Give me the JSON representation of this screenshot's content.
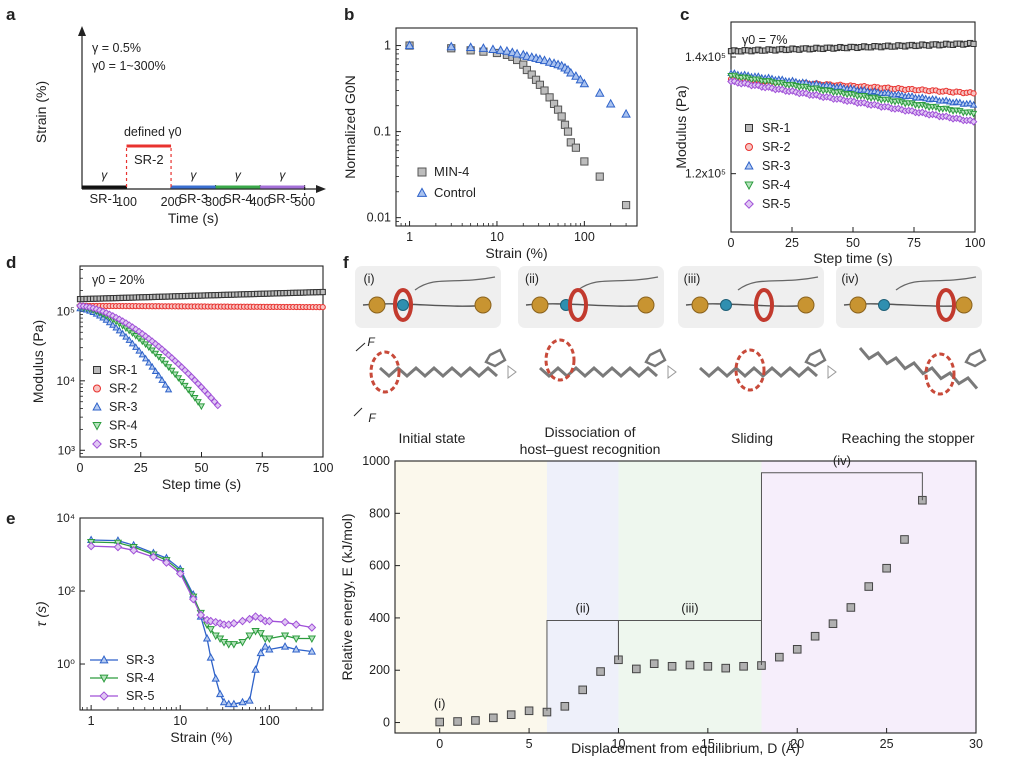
{
  "panel_labels": {
    "a": "a",
    "b": "b",
    "c": "c",
    "d": "d",
    "e": "e",
    "f": "f"
  },
  "chart_data": [
    {
      "id": "a",
      "type": "line",
      "xlabel": "Time (s)",
      "ylabel": "Strain (%)",
      "xticks": [
        "100",
        "200",
        "300",
        "400",
        "500"
      ],
      "annotations": {
        "gamma": "γ = 0.5%",
        "gamma0": "γ0 = 1~300%",
        "defined": "defined γ0",
        "g": "γ"
      },
      "segments": [
        {
          "name": "SR-1",
          "x": [
            0,
            100
          ],
          "level": "low",
          "color": "#111111"
        },
        {
          "name": "SR-2",
          "x": [
            100,
            200
          ],
          "level": "high",
          "color": "#e8322f"
        },
        {
          "name": "SR-3",
          "x": [
            200,
            300
          ],
          "level": "low",
          "color": "#3a6fd0"
        },
        {
          "name": "SR-4",
          "x": [
            300,
            400
          ],
          "level": "low",
          "color": "#3aa84a"
        },
        {
          "name": "SR-5",
          "x": [
            400,
            500
          ],
          "level": "low",
          "color": "#a470d8"
        }
      ]
    },
    {
      "id": "b",
      "type": "scatter",
      "xscale": "log",
      "yscale": "log",
      "xlabel": "Strain (%)",
      "ylabel": "Normalized G0N",
      "xlim": [
        0.7,
        400
      ],
      "ylim": [
        0.008,
        1.6
      ],
      "xticks": [
        1,
        10,
        100
      ],
      "xtick_labels": [
        "1",
        "10",
        "100"
      ],
      "yticks": [
        0.01,
        0.1,
        1
      ],
      "ytick_labels": [
        "0.01",
        "0.1",
        "1"
      ],
      "series": [
        {
          "name": "MIN-4",
          "marker": "square",
          "color": "#555555",
          "fill": "#bdbdbd",
          "x": [
            1,
            3,
            5,
            7,
            10,
            13,
            15,
            17,
            20,
            22,
            25,
            28,
            31,
            35,
            40,
            45,
            50,
            55,
            60,
            65,
            70,
            80,
            100,
            150,
            300
          ],
          "y": [
            1.0,
            0.93,
            0.88,
            0.85,
            0.82,
            0.78,
            0.74,
            0.68,
            0.6,
            0.52,
            0.46,
            0.4,
            0.35,
            0.3,
            0.25,
            0.21,
            0.18,
            0.15,
            0.12,
            0.1,
            0.075,
            0.065,
            0.045,
            0.03,
            0.014
          ]
        },
        {
          "name": "Control",
          "marker": "triangle",
          "color": "#2e62c9",
          "fill": "#a9c2ef",
          "x": [
            1,
            3,
            5,
            7,
            9,
            11,
            13,
            15,
            17,
            20,
            22,
            25,
            28,
            31,
            35,
            40,
            45,
            50,
            55,
            60,
            65,
            70,
            80,
            90,
            100,
            150,
            200,
            300
          ],
          "y": [
            1.0,
            0.97,
            0.95,
            0.93,
            0.9,
            0.88,
            0.86,
            0.83,
            0.8,
            0.78,
            0.75,
            0.73,
            0.71,
            0.69,
            0.67,
            0.64,
            0.62,
            0.6,
            0.58,
            0.55,
            0.52,
            0.48,
            0.44,
            0.4,
            0.36,
            0.28,
            0.21,
            0.16
          ]
        }
      ]
    },
    {
      "id": "c",
      "type": "scatter",
      "xlabel": "Step time (s)",
      "ylabel": "Modulus (Pa)",
      "annotation": "γ0 = 7%",
      "xlim": [
        0,
        100
      ],
      "ylim": [
        110000,
        146000
      ],
      "xticks": [
        0,
        25,
        50,
        75,
        100
      ],
      "xtick_labels": [
        "0",
        "25",
        "50",
        "75",
        "100"
      ],
      "yticks": [
        120000,
        140000
      ],
      "ytick_labels": [
        "1.2x10⁵",
        "1.4x10⁵"
      ],
      "series": [
        {
          "name": "SR-1",
          "marker": "square",
          "color": "#333333",
          "fill": "#bbbbbb",
          "start": 141000,
          "end": 142300
        },
        {
          "name": "SR-2",
          "marker": "circle",
          "color": "#e8322f",
          "fill": "#f7c4c2",
          "start": 136200,
          "end": 133800
        },
        {
          "name": "SR-3",
          "marker": "triangle",
          "color": "#2e62c9",
          "fill": "#b6cbf1",
          "start": 137200,
          "end": 131800
        },
        {
          "name": "SR-4",
          "marker": "invtriangle",
          "color": "#2c9c3e",
          "fill": "#b6e3bd",
          "start": 136800,
          "end": 130300
        },
        {
          "name": "SR-5",
          "marker": "diamond",
          "color": "#a050d8",
          "fill": "#e0c8f3",
          "start": 135800,
          "end": 128900
        }
      ]
    },
    {
      "id": "d",
      "type": "scatter",
      "yscale": "log",
      "xlabel": "Step time (s)",
      "ylabel": "Modulus (Pa)",
      "annotation": "γ0 = 20%",
      "xlim": [
        0,
        100
      ],
      "ylim": [
        800,
        450000
      ],
      "xticks": [
        0,
        25,
        50,
        75,
        100
      ],
      "xtick_labels": [
        "0",
        "25",
        "50",
        "75",
        "100"
      ],
      "yticks": [
        1000,
        10000,
        100000
      ],
      "ytick_labels": [
        "10³",
        "10⁴",
        "10⁵"
      ],
      "series": [
        {
          "name": "SR-1",
          "marker": "square",
          "color": "#333333",
          "fill": "#bbbbbb",
          "start": 150000,
          "end": 190000,
          "tend": 100
        },
        {
          "name": "SR-2",
          "marker": "circle",
          "color": "#e8322f",
          "fill": "#f7c4c2",
          "start": 120000,
          "end": 115000,
          "tend": 100
        },
        {
          "name": "SR-3",
          "marker": "triangle",
          "color": "#2e62c9",
          "fill": "#b6cbf1",
          "start": 110000,
          "end": 7000,
          "tend": 37
        },
        {
          "name": "SR-4",
          "marker": "invtriangle",
          "color": "#2c9c3e",
          "fill": "#b6e3bd",
          "start": 115000,
          "end": 4300,
          "tend": 50
        },
        {
          "name": "SR-5",
          "marker": "diamond",
          "color": "#a050d8",
          "fill": "#e0c8f3",
          "start": 120000,
          "end": 4300,
          "tend": 57
        }
      ]
    },
    {
      "id": "e",
      "type": "line",
      "xscale": "log",
      "yscale": "log",
      "xlabel": "Strain (%)",
      "ylabel": "τ (s)",
      "xlim": [
        0.75,
        400
      ],
      "ylim": [
        0.055,
        10000
      ],
      "xticks": [
        1,
        10,
        100
      ],
      "xtick_labels": [
        "1",
        "10",
        "100"
      ],
      "yticks": [
        1,
        100,
        10000
      ],
      "ytick_labels": [
        "10⁰",
        "10²",
        "10⁴"
      ],
      "series": [
        {
          "name": "SR-3",
          "marker": "triangle",
          "color": "#2e62c9",
          "fill": "#b6cbf1",
          "x": [
            1,
            2,
            3,
            5,
            7,
            10,
            14,
            17,
            20,
            22,
            25,
            28,
            31,
            35,
            40,
            50,
            60,
            70,
            80,
            90,
            100,
            150,
            200,
            300
          ],
          "y": [
            2500,
            2400,
            1800,
            1100,
            800,
            400,
            80,
            20,
            5,
            1.5,
            0.4,
            0.15,
            0.09,
            0.08,
            0.08,
            0.09,
            0.1,
            0.7,
            2,
            3,
            2.5,
            3,
            2.5,
            2.2
          ]
        },
        {
          "name": "SR-4",
          "marker": "invtriangle",
          "color": "#2c9c3e",
          "fill": "#b6e3bd",
          "x": [
            1,
            2,
            3,
            5,
            7,
            10,
            14,
            17,
            20,
            22,
            25,
            28,
            31,
            35,
            40,
            50,
            60,
            70,
            80,
            90,
            100,
            150,
            200,
            300
          ],
          "y": [
            2200,
            2100,
            1600,
            1000,
            700,
            350,
            70,
            25,
            12,
            9,
            6,
            5,
            4,
            3.5,
            3.5,
            4,
            6,
            8,
            7,
            5,
            5,
            6,
            5,
            5
          ]
        },
        {
          "name": "SR-5",
          "marker": "diamond",
          "color": "#a050d8",
          "fill": "#e0c8f3",
          "x": [
            1,
            2,
            3,
            5,
            7,
            10,
            14,
            17,
            20,
            22,
            25,
            28,
            31,
            35,
            40,
            50,
            60,
            70,
            80,
            90,
            100,
            150,
            200,
            300
          ],
          "y": [
            1700,
            1600,
            1300,
            850,
            600,
            300,
            60,
            22,
            16,
            15,
            14,
            13,
            12,
            12,
            13,
            15,
            17,
            20,
            18,
            15,
            15,
            14,
            12,
            10
          ]
        }
      ]
    },
    {
      "id": "f",
      "type": "scatter",
      "xlabel": "Displacement from equilibrium, D (Å)",
      "ylabel": "Relative energy, E (kJ/mol)",
      "xlim": [
        -2.5,
        30
      ],
      "ylim": [
        -40,
        1000
      ],
      "xticks": [
        0,
        5,
        10,
        15,
        20,
        25,
        30
      ],
      "xtick_labels": [
        "0",
        "5",
        "10",
        "15",
        "20",
        "25",
        "30"
      ],
      "yticks": [
        0,
        200,
        400,
        600,
        800,
        1000
      ],
      "ytick_labels": [
        "0",
        "200",
        "400",
        "600",
        "800",
        "1000"
      ],
      "regions": [
        {
          "name": "(i)",
          "from": -2.5,
          "to": 6,
          "color": "#fbf8ec"
        },
        {
          "name": "(ii)",
          "from": 6,
          "to": 10,
          "color": "#eef0fa"
        },
        {
          "name": "(iii)",
          "from": 10,
          "to": 18,
          "color": "#eef7ee"
        },
        {
          "name": "(iv)",
          "from": 18,
          "to": 30,
          "color": "#f6eefb"
        }
      ],
      "series": [
        {
          "name": "energy",
          "marker": "square",
          "color": "#444444",
          "fill": "#b0b0b0",
          "x": [
            0,
            1,
            2,
            3,
            4,
            5,
            6,
            7,
            8,
            9,
            10,
            11,
            12,
            13,
            14,
            15,
            16,
            17,
            18,
            19,
            20,
            21,
            22,
            23,
            24,
            25,
            26,
            27
          ],
          "y": [
            2,
            4,
            8,
            18,
            30,
            45,
            40,
            62,
            125,
            195,
            240,
            205,
            225,
            215,
            220,
            215,
            208,
            215,
            218,
            250,
            280,
            330,
            378,
            440,
            520,
            590,
            700,
            850
          ]
        }
      ],
      "stages": [
        {
          "label": "(i)",
          "caption": "Initial state"
        },
        {
          "label": "(ii)",
          "caption": "Dissociation of host–guest recognition"
        },
        {
          "label": "(iii)",
          "caption": "Sliding"
        },
        {
          "label": "(iv)",
          "caption": "Reaching the stopper"
        }
      ],
      "force_label": "F"
    }
  ]
}
